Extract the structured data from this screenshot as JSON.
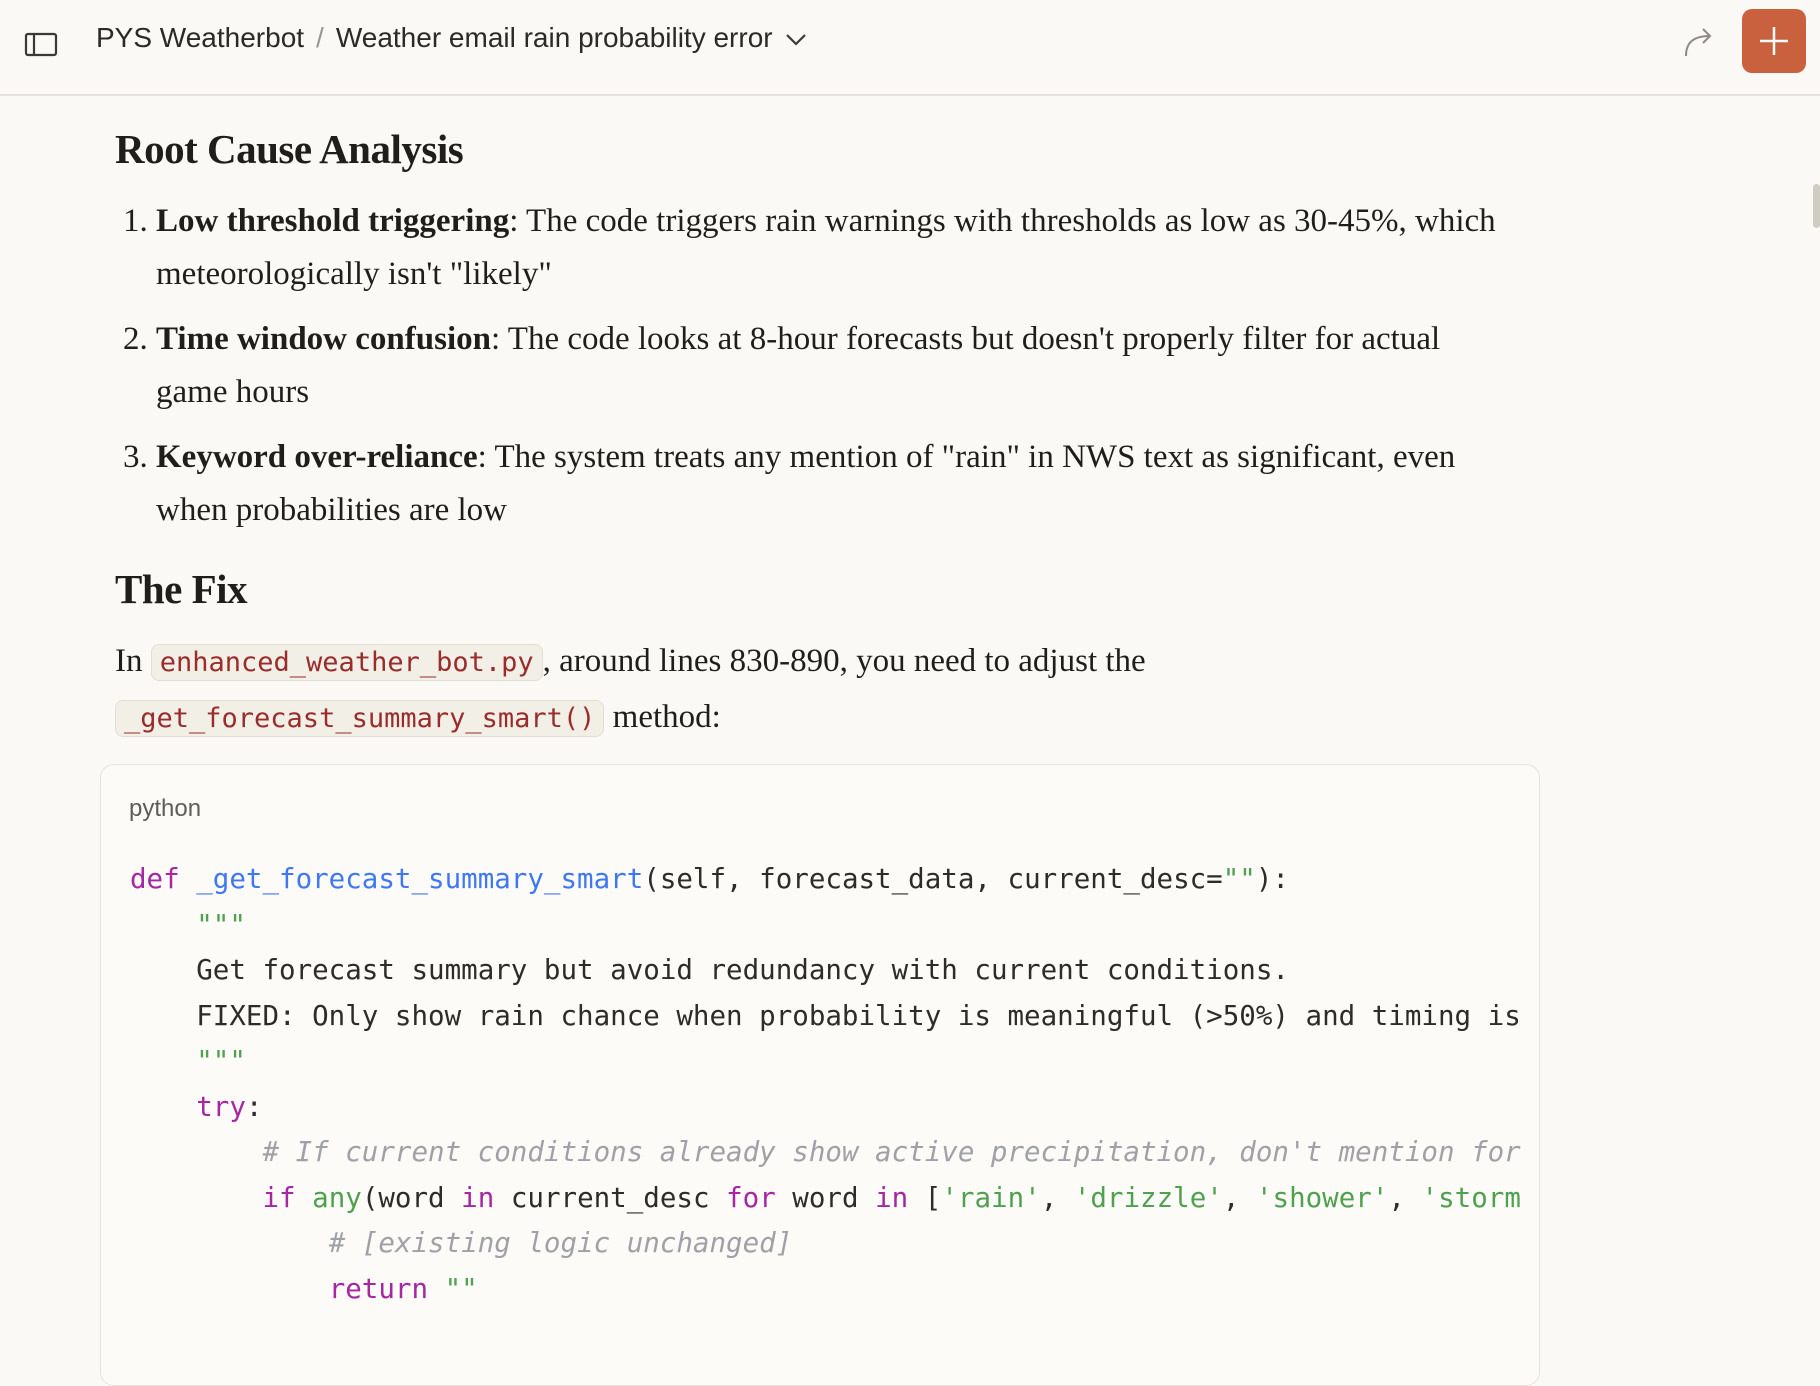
{
  "header": {
    "project": "PYS Weatherbot",
    "separator": "/",
    "chat_title": "Weather email rain probability error",
    "accent_color": "#c9613f"
  },
  "icons": {
    "sidebar": "sidebar-toggle-icon",
    "share": "share-arrow-icon",
    "new_chat": "plus-icon",
    "chevron": "chevron-down-icon"
  },
  "content": {
    "h1": "Root Cause Analysis",
    "items": [
      {
        "bold": "Low threshold triggering",
        "text": ": The code triggers rain warnings with thresholds as low as 30-45%, which meteorologically isn't \"likely\""
      },
      {
        "bold": "Time window confusion",
        "text": ": The code looks at 8-hour forecasts but doesn't properly filter for actual game hours"
      },
      {
        "bold": "Keyword over-reliance",
        "text": ": The system treats any mention of \"rain\" in NWS text as significant, even when probabilities are low"
      }
    ],
    "h2": "The Fix",
    "para": {
      "t1": "In ",
      "code1": "enhanced_weather_bot.py",
      "t2": ", around lines 830-890, you need to adjust the ",
      "code2": "_get_forecast_summary_smart()",
      "t3": " method:"
    }
  },
  "code": {
    "language": "python",
    "l1": {
      "kw": "def",
      "fn": "_get_forecast_summary_smart",
      "rest": "(self, forecast_data, current_desc=",
      "str": "\"\"",
      "end": "):"
    },
    "l2": "\"\"\"",
    "l3": "Get forecast summary but avoid redundancy with current conditions.",
    "l4": "FIXED: Only show rain chance when probability is meaningful (>50%) and timing is",
    "l5": "\"\"\"",
    "l6": {
      "kw": "try",
      "end": ":"
    },
    "l7": "# If current conditions already show active precipitation, don't mention for",
    "l8": {
      "if": "if",
      "any": "any",
      "a": "(word ",
      "in1": "in",
      "b": " current_desc ",
      "for": "for",
      "c": " word ",
      "in2": "in",
      "d": " [",
      "s1": "'rain'",
      "s2": "'drizzle'",
      "s3": "'shower'",
      "s4": "'storm",
      "comma": ", "
    },
    "l9": "# [existing logic unchanged]",
    "l10": {
      "kw": "return",
      "str": "\"\""
    }
  }
}
